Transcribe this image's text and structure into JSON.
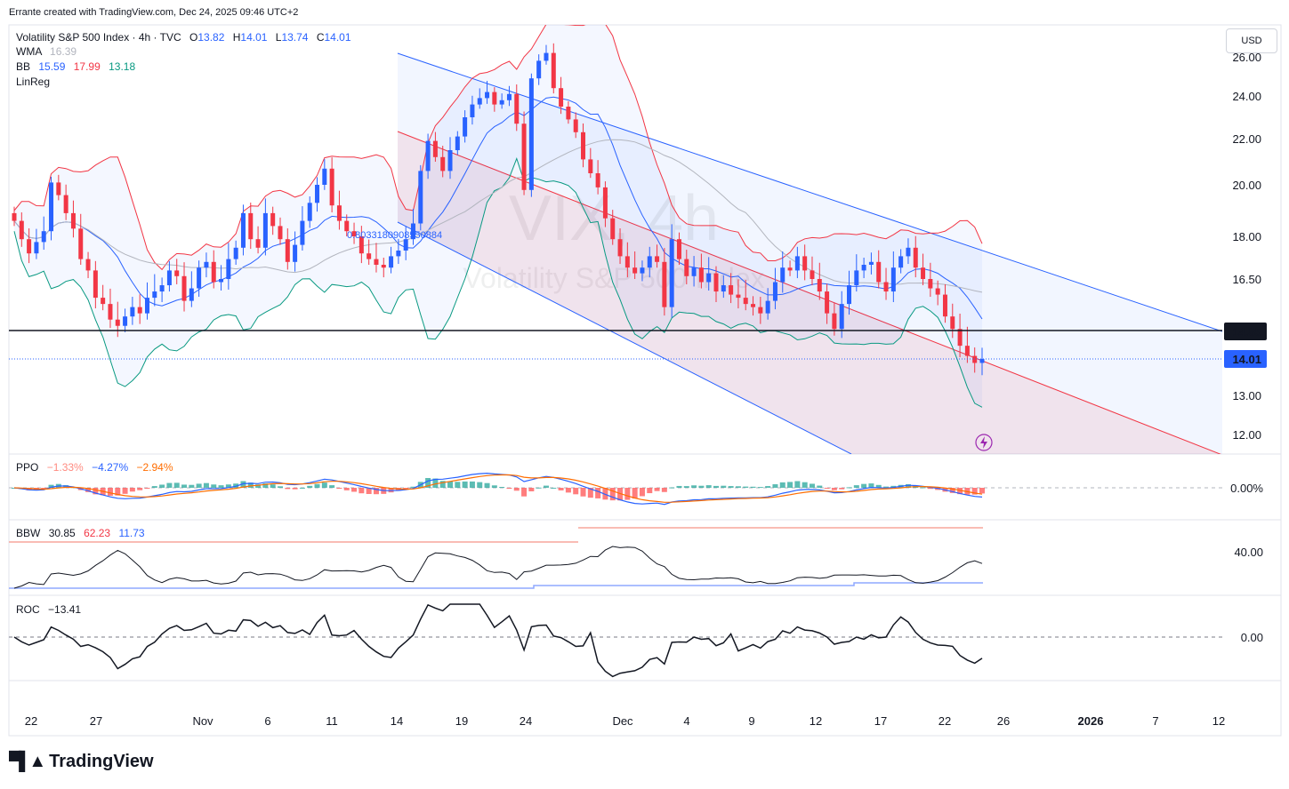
{
  "credit": "Errante created with TradingView.com, Dec 24, 2025 09:46 UTC+2",
  "currency_button": "USD",
  "brand": "TradingView",
  "watermark": {
    "symbol": "VIX, 4h",
    "name": "Volatility S&P 500 Index"
  },
  "colors": {
    "up": "#2962ff",
    "down": "#f23645",
    "bb_upper": "#f23645",
    "bb_basis": "#2962ff",
    "bb_lower": "#089981",
    "wma": "#b2b5be",
    "linreg_up": "#2962ff",
    "linreg_mid": "#f23645",
    "ppo_pos": "#26a69a",
    "ppo_neg": "#ff5252"
  },
  "legend": {
    "title": "Volatility S&P 500 Index · 4h · TVC",
    "o_label": "O",
    "o_value": "13.82",
    "h_label": "H",
    "h_value": "14.01",
    "l_label": "L",
    "l_value": "13.74",
    "c_label": "C",
    "c_value": "14.01",
    "wma_label": "WMA",
    "wma_value": "16.39",
    "bb_label": "BB",
    "bb_basis": "15.59",
    "bb_upper": "17.99",
    "bb_lower": "13.18",
    "linreg_label": "LinReg",
    "linreg_value": "0.8033180908550884"
  },
  "price_labels": {
    "hline": "14.85",
    "last": "14.01"
  },
  "ppo_legend": {
    "label": "PPO",
    "hist": "−1.33%",
    "ppo": "−4.27%",
    "signal": "−2.94%",
    "axis": "0.00%"
  },
  "bbw_legend": {
    "label": "BBW",
    "value": "30.85",
    "upper": "62.23",
    "lower": "11.73",
    "axis": "40.00"
  },
  "roc_legend": {
    "label": "ROC",
    "value": "−13.41",
    "axis": "0.00"
  },
  "chart_data": {
    "type": "candlestick",
    "symbol": "Volatility S&P 500 Index",
    "interval": "4h",
    "y_ticks": [
      "26.00",
      "24.00",
      "22.00",
      "20.00",
      "18.00",
      "16.50",
      "13.00",
      "12.00"
    ],
    "x_ticks": [
      "22",
      "27",
      "Nov",
      "6",
      "11",
      "14",
      "19",
      "24",
      "Dec",
      "4",
      "9",
      "12",
      "17",
      "22",
      "26",
      "2026",
      "7",
      "12"
    ],
    "horizontal_line": 14.85,
    "last_price": 14.01,
    "ohlc_close_series": [
      18.6,
      17.9,
      17.4,
      17.8,
      18.2,
      20.1,
      19.6,
      18.9,
      18.3,
      17.2,
      16.8,
      15.9,
      15.7,
      15.2,
      15.0,
      15.3,
      15.6,
      15.4,
      15.9,
      16.1,
      16.3,
      16.8,
      16.6,
      15.8,
      16.2,
      16.9,
      17.1,
      16.4,
      16.5,
      17.2,
      17.6,
      18.9,
      17.9,
      17.6,
      18.9,
      18.4,
      17.9,
      17.1,
      17.7,
      18.6,
      19.3,
      20.0,
      20.7,
      19.2,
      18.6,
      18.2,
      18.0,
      17.4,
      17.2,
      17.0,
      16.9,
      17.3,
      17.5,
      17.9,
      18.5,
      20.6,
      21.9,
      21.2,
      20.6,
      21.5,
      22.1,
      23.0,
      23.6,
      23.9,
      24.2,
      23.6,
      23.8,
      24.1,
      22.7,
      19.8,
      24.9,
      25.8,
      26.2,
      24.4,
      23.5,
      22.9,
      22.3,
      21.1,
      20.5,
      19.9,
      18.7,
      17.9,
      17.3,
      16.9,
      16.7,
      16.9,
      17.3,
      17.1,
      15.6,
      17.9,
      17.2,
      16.6,
      16.9,
      16.4,
      16.7,
      16.1,
      16.3,
      16.0,
      15.9,
      15.7,
      15.6,
      15.4,
      15.8,
      16.4,
      16.9,
      16.8,
      17.3,
      16.8,
      16.5,
      16.1,
      15.4,
      14.9,
      15.7,
      16.3,
      16.8,
      17.0,
      17.1,
      16.4,
      16.1,
      16.9,
      17.3,
      17.6,
      16.9,
      16.5,
      16.2,
      16.0,
      15.3,
      14.9,
      14.4,
      14.1,
      13.9,
      14.01
    ]
  }
}
